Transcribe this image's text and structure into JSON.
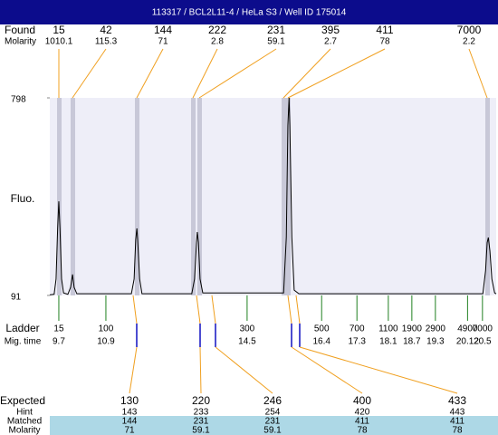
{
  "title": "113317 / BCL2L11-4 / HeLa S3 / Well ID 175014",
  "found": {
    "label": "Found",
    "molarity_label": "Molarity",
    "sizes": [
      15,
      42,
      144,
      222,
      231,
      395,
      411,
      7000
    ],
    "molarity": [
      1010.1,
      115.3,
      71,
      2.8,
      59.1,
      2.7,
      78,
      2.2
    ]
  },
  "ladder": {
    "label": "Ladder",
    "time_label": "Mig. time",
    "sizes": [
      15,
      100,
      300,
      500,
      700,
      1100,
      1900,
      2900,
      4900,
      7000
    ],
    "times": [
      9.7,
      10.9,
      14.5,
      16.4,
      17.3,
      18.1,
      18.7,
      19.3,
      20.12,
      20.5
    ]
  },
  "expected": {
    "label": "Expected",
    "hint_label": "Hint",
    "matched_label": "Matched",
    "molarity_label": "Molarity",
    "sizes": [
      130,
      220,
      246,
      400,
      433
    ],
    "hint": [
      143,
      233,
      254,
      420,
      443
    ],
    "matched": [
      144,
      231,
      231,
      411,
      411
    ],
    "molarity": [
      71,
      59.1,
      59.1,
      78,
      78
    ]
  },
  "chart_data": {
    "type": "line",
    "ylabel": "Fluo.",
    "color": "#000000",
    "xlim": [
      9.47,
      20.85
    ],
    "ylim": [
      91,
      798
    ],
    "yticks": [
      91,
      798
    ],
    "x": [
      9.47,
      9.58,
      9.63,
      9.67,
      9.7,
      9.73,
      9.77,
      9.82,
      9.93,
      10.0,
      10.05,
      10.09,
      10.16,
      11.55,
      11.62,
      11.66,
      11.69,
      11.71,
      11.76,
      11.82,
      13.09,
      13.16,
      13.21,
      13.23,
      13.26,
      13.3,
      13.37,
      15.43,
      15.5,
      15.54,
      15.57,
      15.59,
      15.64,
      15.7,
      15.82,
      20.51,
      20.58,
      20.62,
      20.65,
      20.69,
      20.74,
      20.81,
      20.85
    ],
    "values": [
      93,
      95,
      150,
      330,
      428,
      330,
      150,
      100,
      95,
      120,
      166,
      120,
      97,
      97,
      150,
      290,
      331,
      290,
      150,
      97,
      97,
      150,
      280,
      318,
      280,
      150,
      100,
      100,
      300,
      700,
      798,
      700,
      300,
      110,
      97,
      97,
      180,
      280,
      298,
      250,
      150,
      100,
      97
    ]
  }
}
